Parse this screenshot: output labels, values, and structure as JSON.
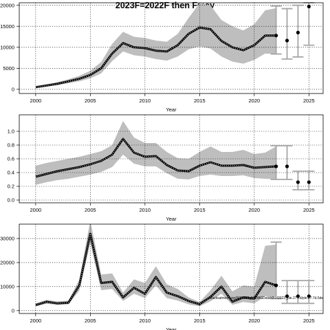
{
  "title": "2023F=2022F then Fmsy",
  "footnote": "Backsalmon...ng@05.002_NWWGData/r2.../2023_ple.27.7d/ple.27.7d.5de",
  "colors": {
    "band": "#bebebe",
    "line": "#000000",
    "dots": "#ffffff",
    "errorbar": "#a6a6a6",
    "point": "#000000"
  },
  "chart_data": [
    {
      "type": "line",
      "panel": "top",
      "xlabel": "Year",
      "ylabel": "",
      "xlim": [
        1998.5,
        2026.3
      ],
      "ylim": [
        -1000,
        20600
      ],
      "xticks": [
        2000,
        2005,
        2010,
        2015,
        2020,
        2025
      ],
      "xtick_labels": [
        "2000",
        "2005",
        "2010",
        "2015",
        "2020",
        "2025"
      ],
      "yticks": [
        0,
        5000,
        10000,
        15000,
        20000
      ],
      "ytick_labels": [
        "0",
        "5000",
        "10000",
        "15000",
        "20000"
      ],
      "grid": true,
      "x": [
        2000,
        2001,
        2002,
        2003,
        2004,
        2005,
        2006,
        2007,
        2008,
        2009,
        2010,
        2011,
        2012,
        2013,
        2014,
        2015,
        2016,
        2017,
        2018,
        2019,
        2020,
        2021,
        2022
      ],
      "series": [
        {
          "values": [
            500,
            900,
            1300,
            1900,
            2500,
            3400,
            5000,
            8500,
            11000,
            10000,
            9800,
            9200,
            9000,
            10500,
            13200,
            14700,
            14300,
            11500,
            10000,
            9300,
            10500,
            12800,
            12800
          ]
        }
      ],
      "band_upper": [
        700,
        1150,
        1700,
        2400,
        3200,
        4400,
        6500,
        10800,
        13700,
        12500,
        12200,
        11600,
        11300,
        13200,
        17000,
        20500,
        20000,
        16500,
        15000,
        14000,
        15500,
        18800,
        19300
      ],
      "band_lower": [
        350,
        700,
        1000,
        1450,
        1900,
        2600,
        3800,
        6700,
        9000,
        8100,
        7800,
        7200,
        6800,
        7800,
        9500,
        10200,
        9700,
        7800,
        6600,
        6100,
        7000,
        8500,
        8400
      ],
      "projections": [
        {
          "x": 2022,
          "value": 12800,
          "lower": 8400,
          "upper": 19800
        },
        {
          "x": 2023,
          "value": 11600,
          "lower": 7200,
          "upper": 19200
        },
        {
          "x": 2024,
          "value": 13500,
          "lower": 7700,
          "upper": 20000
        },
        {
          "x": 2025,
          "value": 19700,
          "lower": 10500,
          "upper": 20600
        }
      ]
    },
    {
      "type": "line",
      "panel": "middle",
      "xlabel": "Year",
      "ylabel": "",
      "xlim": [
        1998.5,
        2026.3
      ],
      "ylim": [
        -0.04,
        1.24
      ],
      "xticks": [
        2000,
        2005,
        2010,
        2015,
        2020,
        2025
      ],
      "xtick_labels": [
        "2000",
        "2005",
        "2010",
        "2015",
        "2020",
        "2025"
      ],
      "yticks": [
        0.0,
        0.2,
        0.4,
        0.6,
        0.8,
        1.0
      ],
      "ytick_labels": [
        "0.0",
        "0.2",
        "0.4",
        "0.6",
        "0.8",
        "1.0"
      ],
      "grid": true,
      "x": [
        2000,
        2001,
        2002,
        2003,
        2004,
        2005,
        2006,
        2007,
        2008,
        2009,
        2010,
        2011,
        2012,
        2013,
        2014,
        2015,
        2016,
        2017,
        2018,
        2019,
        2020,
        2021,
        2022
      ],
      "series": [
        {
          "values": [
            0.34,
            0.38,
            0.42,
            0.45,
            0.48,
            0.52,
            0.57,
            0.66,
            0.89,
            0.69,
            0.63,
            0.64,
            0.51,
            0.43,
            0.42,
            0.5,
            0.55,
            0.5,
            0.5,
            0.51,
            0.47,
            0.48,
            0.49
          ]
        }
      ],
      "band_upper": [
        0.5,
        0.54,
        0.57,
        0.6,
        0.63,
        0.67,
        0.71,
        0.8,
        1.15,
        0.91,
        0.83,
        0.83,
        0.7,
        0.61,
        0.6,
        0.7,
        0.78,
        0.7,
        0.7,
        0.73,
        0.67,
        0.69,
        0.78
      ],
      "band_lower": [
        0.22,
        0.26,
        0.29,
        0.31,
        0.34,
        0.37,
        0.41,
        0.48,
        0.66,
        0.53,
        0.49,
        0.49,
        0.39,
        0.31,
        0.3,
        0.35,
        0.37,
        0.35,
        0.35,
        0.36,
        0.32,
        0.31,
        0.3
      ],
      "projections": [
        {
          "x": 2022,
          "value": 0.49,
          "lower": 0.3,
          "upper": 0.79
        },
        {
          "x": 2023,
          "value": 0.49,
          "lower": 0.3,
          "upper": 0.79
        },
        {
          "x": 2024,
          "value": 0.26,
          "lower": 0.15,
          "upper": 0.42
        },
        {
          "x": 2025,
          "value": 0.26,
          "lower": 0.15,
          "upper": 0.42
        }
      ]
    },
    {
      "type": "line",
      "panel": "bottom",
      "xlabel": "Year",
      "ylabel": "",
      "xlim": [
        1998.5,
        2026.3
      ],
      "ylim": [
        -1200,
        36000
      ],
      "xticks": [
        2000,
        2005,
        2010,
        2015,
        2020,
        2025
      ],
      "xtick_labels": [
        "2000",
        "2005",
        "2010",
        "2015",
        "2020",
        "2025"
      ],
      "yticks": [
        0,
        10000,
        20000,
        30000
      ],
      "ytick_labels": [
        "0",
        "10000",
        "20000",
        "30000"
      ],
      "grid": true,
      "x": [
        2000,
        2001,
        2002,
        2003,
        2004,
        2005,
        2006,
        2007,
        2008,
        2009,
        2010,
        2011,
        2012,
        2013,
        2014,
        2015,
        2016,
        2017,
        2018,
        2019,
        2020,
        2021,
        2022
      ],
      "series": [
        {
          "values": [
            2300,
            3700,
            3000,
            3300,
            10500,
            32000,
            11500,
            12000,
            5500,
            9500,
            7000,
            14000,
            7500,
            6000,
            4000,
            2700,
            5700,
            10000,
            3700,
            5500,
            5000,
            12000,
            10500
          ]
        }
      ],
      "band_upper": [
        3000,
        4500,
        3800,
        4200,
        13000,
        37500,
        15000,
        15500,
        7500,
        13000,
        11500,
        18500,
        11000,
        9000,
        5500,
        3600,
        8500,
        14500,
        8000,
        10500,
        10000,
        27000,
        27500
      ],
      "band_lower": [
        1800,
        2900,
        2400,
        2600,
        8300,
        28000,
        8500,
        9000,
        4000,
        7000,
        5200,
        10500,
        5200,
        4200,
        2600,
        1800,
        3900,
        7000,
        2400,
        3600,
        3000,
        6000,
        5000
      ],
      "projections": [
        {
          "x": 2022,
          "value": 10500,
          "lower": 5000,
          "upper": 28500
        },
        {
          "x": 2023,
          "value": 6000,
          "lower": 3000,
          "upper": 12500
        },
        {
          "x": 2024,
          "value": 6000,
          "lower": 3000,
          "upper": 12500
        },
        {
          "x": 2025,
          "value": 6000,
          "lower": 3000,
          "upper": 12500
        }
      ]
    }
  ]
}
